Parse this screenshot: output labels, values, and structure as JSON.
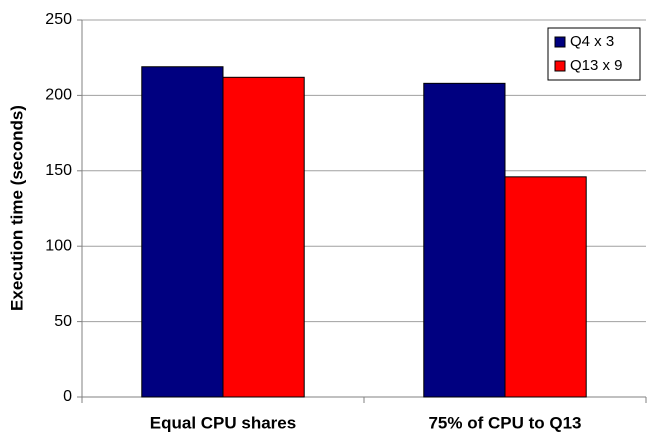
{
  "chart_data": {
    "type": "bar",
    "y_label": "Execution time (seconds)",
    "categories": [
      "Equal CPU shares",
      "75% of CPU to Q13"
    ],
    "series": [
      {
        "name": "Q4 x 3",
        "color": "#000080",
        "values": [
          219,
          208
        ]
      },
      {
        "name": "Q13 x 9",
        "color": "#ff0000",
        "values": [
          212,
          146
        ]
      }
    ],
    "ylim": [
      0,
      250
    ],
    "yticks": [
      0,
      50,
      100,
      150,
      200,
      250
    ],
    "grid": true,
    "legend": "upper right"
  }
}
